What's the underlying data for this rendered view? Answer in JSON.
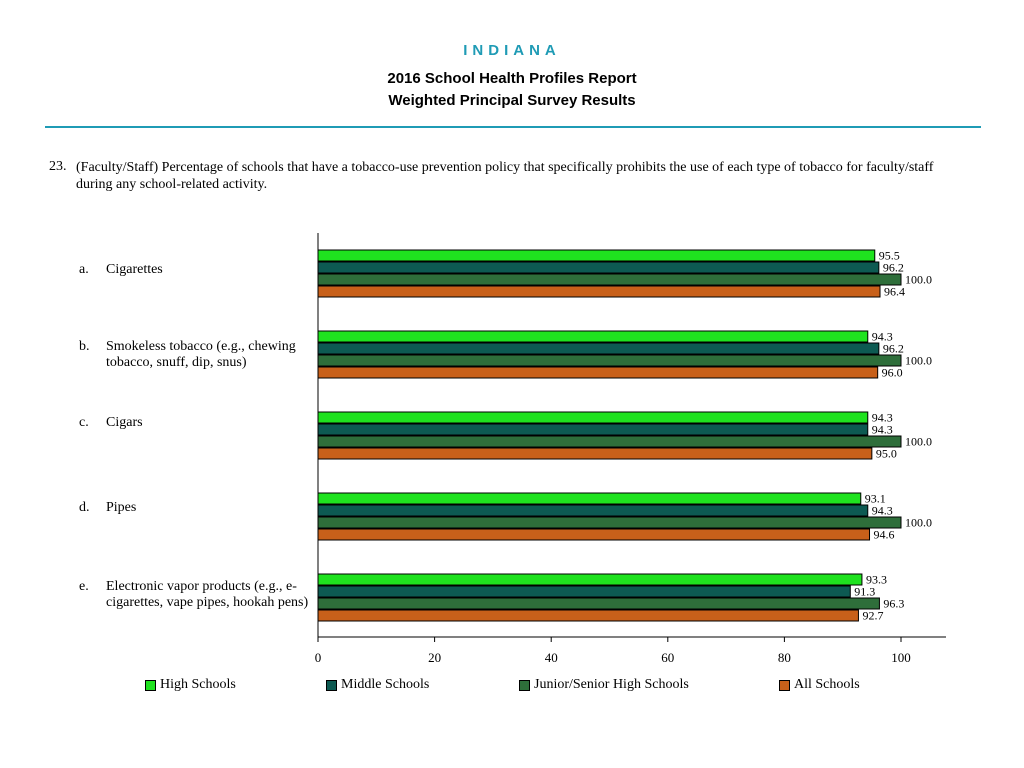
{
  "header": {
    "state": "INDIANA",
    "title_line1": "2016 School Health Profiles Report",
    "title_line2": "Weighted Principal Survey Results"
  },
  "question": {
    "number": "23.",
    "text": "(Faculty/Staff) Percentage of schools that have a tobacco-use prevention policy that specifically prohibits the use of each type of tobacco for faculty/staff during any school-related activity."
  },
  "chart_data": {
    "type": "bar",
    "orientation": "horizontal",
    "categories": [
      {
        "letter": "a.",
        "label": "Cigarettes"
      },
      {
        "letter": "b.",
        "label": "Smokeless tobacco (e.g., chewing tobacco, snuff, dip, snus)"
      },
      {
        "letter": "c.",
        "label": "Cigars"
      },
      {
        "letter": "d.",
        "label": "Pipes"
      },
      {
        "letter": "e.",
        "label": "Electronic vapor products (e.g., e-cigarettes, vape pipes, hookah pens)"
      }
    ],
    "series": [
      {
        "name": "High Schools",
        "color": "#1fe21f",
        "values": [
          95.5,
          94.3,
          94.3,
          93.1,
          93.3
        ],
        "labels": [
          "95.5",
          "94.3",
          "94.3",
          "93.1",
          "93.3"
        ]
      },
      {
        "name": "Middle Schools",
        "color": "#0d5a52",
        "values": [
          96.2,
          96.2,
          94.3,
          94.3,
          91.3
        ],
        "labels": [
          "96.2",
          "96.2",
          "94.3",
          "94.3",
          "91.3"
        ]
      },
      {
        "name": "Junior/Senior High Schools",
        "color": "#2e6e3a",
        "values": [
          100.0,
          100.0,
          100.0,
          100.0,
          96.3
        ],
        "labels": [
          "100.0",
          "100.0",
          "100.0",
          "100.0",
          "96.3"
        ]
      },
      {
        "name": "All Schools",
        "color": "#c8601a",
        "values": [
          96.4,
          96.0,
          95.0,
          94.6,
          92.7
        ],
        "labels": [
          "96.4",
          "96.0",
          "95.0",
          "94.6",
          "92.7"
        ]
      }
    ],
    "xlim": [
      0,
      100
    ],
    "xticks": [
      "0",
      "20",
      "40",
      "60",
      "80",
      "100"
    ],
    "grid": false,
    "legend_position": "bottom"
  }
}
